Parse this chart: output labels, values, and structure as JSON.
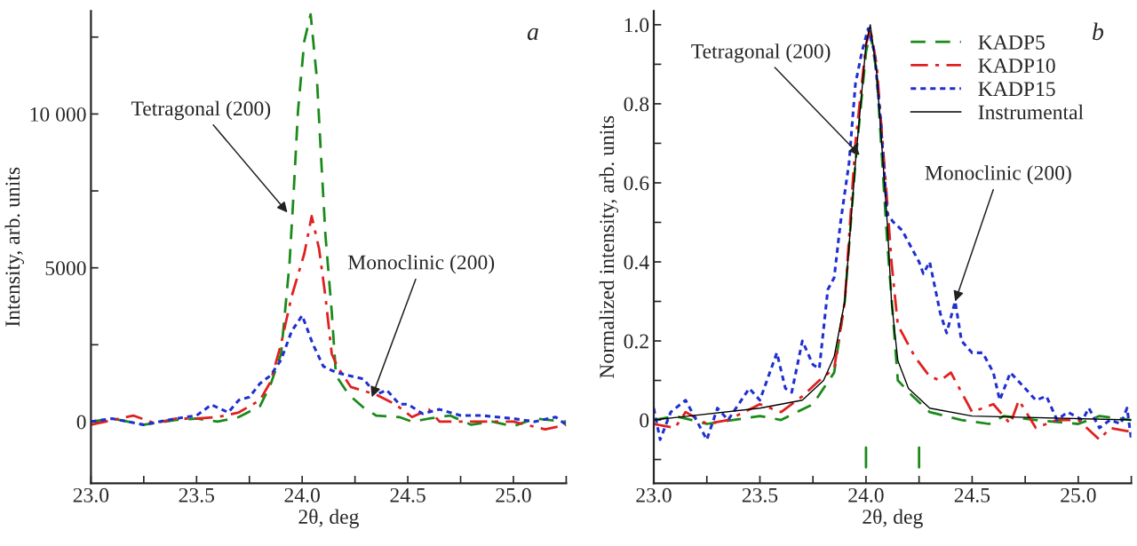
{
  "chart_data": [
    {
      "type": "line",
      "xlabel": "2θ, deg",
      "ylabel": "Intensity, arb. units",
      "xlim": [
        23.0,
        25.25
      ],
      "xticks": [
        {
          "value": 23.0,
          "label": "23.0"
        },
        {
          "value": 23.25,
          "label": null
        },
        {
          "value": 23.5,
          "label": "23.5"
        },
        {
          "value": 23.75,
          "label": null
        },
        {
          "value": 24.0,
          "label": "24.0"
        },
        {
          "value": 24.25,
          "label": null
        },
        {
          "value": 24.5,
          "label": "24.5"
        },
        {
          "value": 24.75,
          "label": null
        },
        {
          "value": 25.0,
          "label": "25.0"
        },
        {
          "value": 25.25,
          "label": null
        }
      ],
      "ylim": [
        -2000,
        13350
      ],
      "yticks": [
        0,
        {
          "value": 2500,
          "label": null
        },
        5000,
        {
          "value": 7500,
          "label": null
        },
        {
          "value": 10000,
          "label": "10 000"
        },
        {
          "value": 12500,
          "label": null
        }
      ],
      "grid": false,
      "legend": false,
      "series": [
        {
          "color": "#1a8a1a",
          "line_style": "dashed",
          "x": [
            23.0,
            23.1,
            23.25,
            23.4,
            23.5,
            23.6,
            23.7,
            23.8,
            23.85,
            23.9,
            23.94,
            23.96,
            23.98,
            24.01,
            24.04,
            24.07,
            24.09,
            24.11,
            24.14,
            24.16,
            24.22,
            24.29,
            24.35,
            24.46,
            24.52,
            24.6,
            24.7,
            24.8,
            24.9,
            25.0,
            25.1,
            25.25
          ],
          "values": [
            0,
            100,
            -100,
            50,
            100,
            0,
            150,
            500,
            1200,
            2200,
            5140,
            7500,
            10090,
            12370,
            13240,
            11120,
            8530,
            6070,
            3560,
            1500,
            880,
            460,
            200,
            150,
            0,
            100,
            200,
            -100,
            0,
            -150,
            100,
            0
          ]
        },
        {
          "color": "#e02020",
          "line_style": "dashdot",
          "x": [
            23.0,
            23.1,
            23.2,
            23.3,
            23.4,
            23.5,
            23.6,
            23.7,
            23.8,
            23.85,
            23.9,
            23.95,
            24.01,
            24.045,
            24.08,
            24.11,
            24.14,
            24.17,
            24.23,
            24.35,
            24.44,
            24.52,
            24.6,
            24.65,
            24.8,
            25.0,
            25.15,
            25.25
          ],
          "values": [
            -100,
            50,
            200,
            -50,
            100,
            100,
            150,
            300,
            700,
            1290,
            2530,
            4070,
            5460,
            6680,
            5620,
            4070,
            2200,
            1750,
            1130,
            880,
            570,
            150,
            400,
            0,
            0,
            0,
            -250,
            -100
          ]
        },
        {
          "color": "#1f2fd0",
          "line_style": "dotted",
          "x": [
            23.0,
            23.1,
            23.25,
            23.4,
            23.5,
            23.57,
            23.65,
            23.7,
            23.75,
            23.8,
            23.85,
            23.9,
            23.95,
            24.0,
            24.05,
            24.1,
            24.16,
            24.22,
            24.29,
            24.35,
            24.4,
            24.46,
            24.5,
            24.57,
            24.65,
            24.75,
            24.85,
            25.0,
            25.1,
            25.2,
            25.25
          ],
          "values": [
            0,
            100,
            -100,
            100,
            200,
            550,
            300,
            700,
            800,
            1240,
            1500,
            2010,
            2940,
            3450,
            2530,
            1800,
            1600,
            1500,
            1390,
            880,
            1030,
            570,
            570,
            260,
            400,
            200,
            200,
            100,
            0,
            150,
            -100
          ]
        }
      ],
      "annotations": [
        {
          "text": "Tetragonal (200)",
          "x": 23.93,
          "y": 6800
        },
        {
          "text": "Monoclinic (200)",
          "x": 24.33,
          "y": 800
        },
        "a"
      ]
    },
    {
      "type": "line",
      "xlabel": "2θ, deg",
      "ylabel": "Normalized intensity, arb. units",
      "xlim": [
        23.0,
        25.25
      ],
      "xticks": [
        {
          "value": 23.0,
          "label": "23.0"
        },
        {
          "value": 23.25,
          "label": null
        },
        {
          "value": 23.5,
          "label": "23.5"
        },
        {
          "value": 23.75,
          "label": null
        },
        {
          "value": 24.0,
          "label": "24.0"
        },
        {
          "value": 24.25,
          "label": null
        },
        {
          "value": 24.5,
          "label": "24.5"
        },
        {
          "value": 24.75,
          "label": null
        },
        {
          "value": 25.0,
          "label": "25.0"
        },
        {
          "value": 25.25,
          "label": null
        }
      ],
      "ylim": [
        -0.16,
        1.035
      ],
      "yticks": [
        {
          "value": -0.1,
          "label": null
        },
        0,
        {
          "value": 0.1,
          "label": null
        },
        {
          "value": 0.2,
          "label": "0.2"
        },
        {
          "value": 0.3,
          "label": null
        },
        {
          "value": 0.4,
          "label": "0.4"
        },
        {
          "value": 0.5,
          "label": null
        },
        {
          "value": 0.6,
          "label": "0.6"
        },
        {
          "value": 0.7,
          "label": null
        },
        {
          "value": 0.8,
          "label": "0.8"
        },
        {
          "value": 0.9,
          "label": null
        },
        {
          "value": 1.0,
          "label": "1.0"
        }
      ],
      "grid": false,
      "legend": "top right",
      "series": [
        {
          "name": "KADP5",
          "color": "#1a8a1a",
          "line_style": "dashed",
          "x": [
            23.0,
            23.1,
            23.25,
            23.5,
            23.6,
            23.75,
            23.85,
            23.9,
            23.95,
            24.0,
            24.02,
            24.05,
            24.1,
            24.15,
            24.22,
            24.3,
            24.45,
            24.58,
            24.65,
            24.8,
            25.0,
            25.1,
            25.25
          ],
          "values": [
            0,
            0.01,
            -0.01,
            0.01,
            0.0,
            0.04,
            0.12,
            0.3,
            0.65,
            0.93,
            0.98,
            0.88,
            0.45,
            0.1,
            0.06,
            0.02,
            0.0,
            -0.01,
            0.01,
            0.0,
            -0.01,
            0.01,
            0.0
          ]
        },
        {
          "name": "KADP10",
          "color": "#e02020",
          "line_style": "dashdot",
          "x": [
            23.0,
            23.1,
            23.15,
            23.25,
            23.35,
            23.5,
            23.6,
            23.7,
            23.78,
            23.85,
            23.9,
            23.95,
            24.0,
            24.02,
            24.05,
            24.1,
            24.12,
            24.15,
            24.23,
            24.3,
            24.35,
            24.4,
            24.5,
            24.6,
            24.68,
            24.72,
            24.8,
            24.9,
            25.0,
            25.1,
            25.15,
            25.25
          ],
          "values": [
            -0.01,
            -0.02,
            0.02,
            -0.01,
            0.0,
            0.04,
            0.02,
            0.06,
            0.1,
            0.13,
            0.3,
            0.7,
            0.95,
            0.99,
            0.9,
            0.55,
            0.4,
            0.24,
            0.16,
            0.11,
            0.1,
            0.12,
            0.02,
            0.04,
            -0.01,
            0.05,
            -0.02,
            0.0,
            0.0,
            -0.05,
            -0.02,
            -0.03
          ]
        },
        {
          "name": "KADP15",
          "color": "#1f2fd0",
          "line_style": "dotted",
          "x": [
            23.0,
            23.03,
            23.08,
            23.15,
            23.25,
            23.3,
            23.35,
            23.45,
            23.5,
            23.58,
            23.62,
            23.65,
            23.7,
            23.75,
            23.78,
            23.82,
            23.85,
            23.88,
            23.92,
            23.95,
            23.98,
            24.01,
            24.04,
            24.07,
            24.1,
            24.13,
            24.17,
            24.2,
            24.25,
            24.27,
            24.3,
            24.35,
            24.38,
            24.42,
            24.45,
            24.5,
            24.55,
            24.6,
            24.63,
            24.68,
            24.75,
            24.8,
            24.85,
            24.9,
            24.95,
            25.02,
            25.05,
            25.1,
            25.15,
            25.2,
            25.23,
            25.25
          ],
          "values": [
            0.03,
            -0.05,
            0.02,
            0.05,
            -0.05,
            0.03,
            0.0,
            0.08,
            0.05,
            0.17,
            0.08,
            0.07,
            0.2,
            0.14,
            0.13,
            0.33,
            0.36,
            0.5,
            0.65,
            0.85,
            0.93,
            0.99,
            0.93,
            0.75,
            0.52,
            0.5,
            0.48,
            0.45,
            0.4,
            0.37,
            0.4,
            0.27,
            0.22,
            0.3,
            0.2,
            0.17,
            0.17,
            0.12,
            0.05,
            0.12,
            0.08,
            0.05,
            0.06,
            0.0,
            0.02,
            0.0,
            0.03,
            -0.02,
            0.0,
            -0.01,
            0.03,
            -0.05
          ]
        },
        {
          "name": "Instrumental",
          "color": "#000000",
          "line_style": "solid",
          "x": [
            23.0,
            23.5,
            23.7,
            23.8,
            23.85,
            23.9,
            23.95,
            24.0,
            24.02,
            24.05,
            24.1,
            24.12,
            24.15,
            24.2,
            24.3,
            24.5,
            25.25
          ],
          "values": [
            0,
            0.03,
            0.05,
            0.1,
            0.16,
            0.3,
            0.65,
            0.95,
            1.0,
            0.88,
            0.5,
            0.3,
            0.15,
            0.08,
            0.03,
            0.01,
            0
          ]
        },
        {
          "color": "#1a8a1a",
          "line_style": "solid",
          "x": [
            24.0,
            24.0,
            24.1,
            24.25,
            24.25
          ],
          "values": [
            -0.07,
            -0.12,
            null,
            -0.07,
            -0.12
          ]
        }
      ],
      "annotations": [
        {
          "text": "Tetragonal (200)",
          "x": 23.97,
          "y": 0.67
        },
        {
          "text": "Monoclinic (200)",
          "x": 24.42,
          "y": 0.3
        },
        "b"
      ]
    }
  ]
}
